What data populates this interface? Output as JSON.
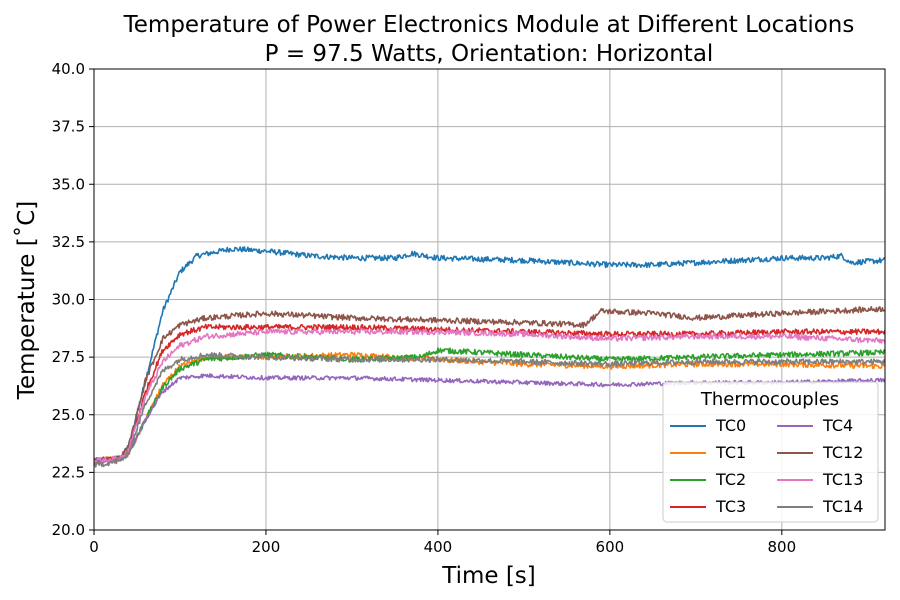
{
  "chart_data": {
    "type": "line",
    "title_line1": "Temperature of Power Electronics Module at Different Locations",
    "title_line2": "P = 97.5 Watts, Orientation: Horizontal",
    "xlabel": "Time [s]",
    "ylabel": "Temperature [˚C]",
    "xlim": [
      0,
      920
    ],
    "ylim": [
      20.0,
      40.0
    ],
    "xticks": [
      0,
      200,
      400,
      600,
      800
    ],
    "xtick_labels": [
      "0",
      "200",
      "400",
      "600",
      "800"
    ],
    "yticks": [
      20.0,
      22.5,
      25.0,
      27.5,
      30.0,
      32.5,
      35.0,
      37.5,
      40.0
    ],
    "ytick_labels": [
      "20.0",
      "22.5",
      "25.0",
      "27.5",
      "30.0",
      "32.5",
      "35.0",
      "37.5",
      "40.0"
    ],
    "grid": true,
    "legend": {
      "title": "Thermocouples",
      "position": "lower-right",
      "columns": 2
    },
    "series": [
      {
        "name": "TC0",
        "color": "#1f77b4",
        "noise": 0.12,
        "points": [
          [
            0,
            23.0
          ],
          [
            30,
            23.1
          ],
          [
            40,
            23.6
          ],
          [
            60,
            26.5
          ],
          [
            80,
            29.5
          ],
          [
            100,
            31.2
          ],
          [
            120,
            31.9
          ],
          [
            160,
            32.2
          ],
          [
            200,
            32.1
          ],
          [
            250,
            31.9
          ],
          [
            300,
            31.8
          ],
          [
            350,
            31.8
          ],
          [
            370,
            32.0
          ],
          [
            400,
            31.8
          ],
          [
            500,
            31.7
          ],
          [
            600,
            31.5
          ],
          [
            650,
            31.5
          ],
          [
            700,
            31.6
          ],
          [
            800,
            31.8
          ],
          [
            850,
            31.8
          ],
          [
            870,
            31.9
          ],
          [
            880,
            31.6
          ],
          [
            920,
            31.7
          ]
        ]
      },
      {
        "name": "TC1",
        "color": "#ff7f0e",
        "noise": 0.12,
        "points": [
          [
            0,
            23.0
          ],
          [
            30,
            23.1
          ],
          [
            40,
            23.3
          ],
          [
            60,
            24.8
          ],
          [
            80,
            26.3
          ],
          [
            100,
            27.1
          ],
          [
            130,
            27.5
          ],
          [
            200,
            27.5
          ],
          [
            300,
            27.6
          ],
          [
            400,
            27.4
          ],
          [
            500,
            27.2
          ],
          [
            600,
            27.1
          ],
          [
            700,
            27.2
          ],
          [
            800,
            27.2
          ],
          [
            920,
            27.1
          ]
        ]
      },
      {
        "name": "TC2",
        "color": "#2ca02c",
        "noise": 0.12,
        "points": [
          [
            0,
            23.0
          ],
          [
            30,
            23.1
          ],
          [
            40,
            23.3
          ],
          [
            60,
            24.8
          ],
          [
            80,
            26.2
          ],
          [
            100,
            27.0
          ],
          [
            130,
            27.4
          ],
          [
            200,
            27.6
          ],
          [
            300,
            27.4
          ],
          [
            380,
            27.5
          ],
          [
            400,
            27.8
          ],
          [
            500,
            27.6
          ],
          [
            600,
            27.4
          ],
          [
            700,
            27.5
          ],
          [
            800,
            27.6
          ],
          [
            920,
            27.7
          ]
        ]
      },
      {
        "name": "TC3",
        "color": "#d62728",
        "noise": 0.12,
        "points": [
          [
            0,
            23.0
          ],
          [
            30,
            23.1
          ],
          [
            40,
            23.5
          ],
          [
            60,
            26.0
          ],
          [
            80,
            27.8
          ],
          [
            100,
            28.5
          ],
          [
            130,
            28.8
          ],
          [
            200,
            28.8
          ],
          [
            300,
            28.8
          ],
          [
            400,
            28.7
          ],
          [
            500,
            28.6
          ],
          [
            600,
            28.5
          ],
          [
            700,
            28.5
          ],
          [
            800,
            28.6
          ],
          [
            920,
            28.6
          ]
        ]
      },
      {
        "name": "TC4",
        "color": "#9467bd",
        "noise": 0.09,
        "points": [
          [
            0,
            23.0
          ],
          [
            30,
            23.1
          ],
          [
            40,
            23.3
          ],
          [
            60,
            24.8
          ],
          [
            80,
            26.0
          ],
          [
            100,
            26.6
          ],
          [
            130,
            26.7
          ],
          [
            200,
            26.6
          ],
          [
            300,
            26.6
          ],
          [
            400,
            26.5
          ],
          [
            500,
            26.4
          ],
          [
            600,
            26.3
          ],
          [
            700,
            26.4
          ],
          [
            800,
            26.4
          ],
          [
            920,
            26.5
          ]
        ]
      },
      {
        "name": "TC12",
        "color": "#8c564b",
        "noise": 0.12,
        "points": [
          [
            0,
            23.0
          ],
          [
            30,
            23.1
          ],
          [
            40,
            23.6
          ],
          [
            60,
            26.5
          ],
          [
            80,
            28.3
          ],
          [
            100,
            28.9
          ],
          [
            130,
            29.2
          ],
          [
            200,
            29.4
          ],
          [
            300,
            29.2
          ],
          [
            400,
            29.1
          ],
          [
            500,
            29.0
          ],
          [
            570,
            28.9
          ],
          [
            590,
            29.5
          ],
          [
            650,
            29.4
          ],
          [
            700,
            29.2
          ],
          [
            800,
            29.4
          ],
          [
            920,
            29.6
          ]
        ]
      },
      {
        "name": "TC13",
        "color": "#e377c2",
        "noise": 0.12,
        "points": [
          [
            0,
            23.0
          ],
          [
            30,
            23.1
          ],
          [
            40,
            23.5
          ],
          [
            60,
            25.8
          ],
          [
            80,
            27.3
          ],
          [
            100,
            28.0
          ],
          [
            130,
            28.4
          ],
          [
            200,
            28.6
          ],
          [
            300,
            28.6
          ],
          [
            400,
            28.6
          ],
          [
            500,
            28.5
          ],
          [
            600,
            28.3
          ],
          [
            700,
            28.4
          ],
          [
            800,
            28.4
          ],
          [
            920,
            28.2
          ]
        ]
      },
      {
        "name": "TC14",
        "color": "#7f7f7f",
        "noise": 0.12,
        "points": [
          [
            0,
            22.8
          ],
          [
            30,
            23.0
          ],
          [
            40,
            23.3
          ],
          [
            60,
            25.5
          ],
          [
            80,
            26.9
          ],
          [
            100,
            27.4
          ],
          [
            130,
            27.6
          ],
          [
            200,
            27.5
          ],
          [
            300,
            27.4
          ],
          [
            400,
            27.4
          ],
          [
            500,
            27.3
          ],
          [
            600,
            27.2
          ],
          [
            700,
            27.3
          ],
          [
            800,
            27.3
          ],
          [
            920,
            27.3
          ]
        ]
      }
    ]
  }
}
